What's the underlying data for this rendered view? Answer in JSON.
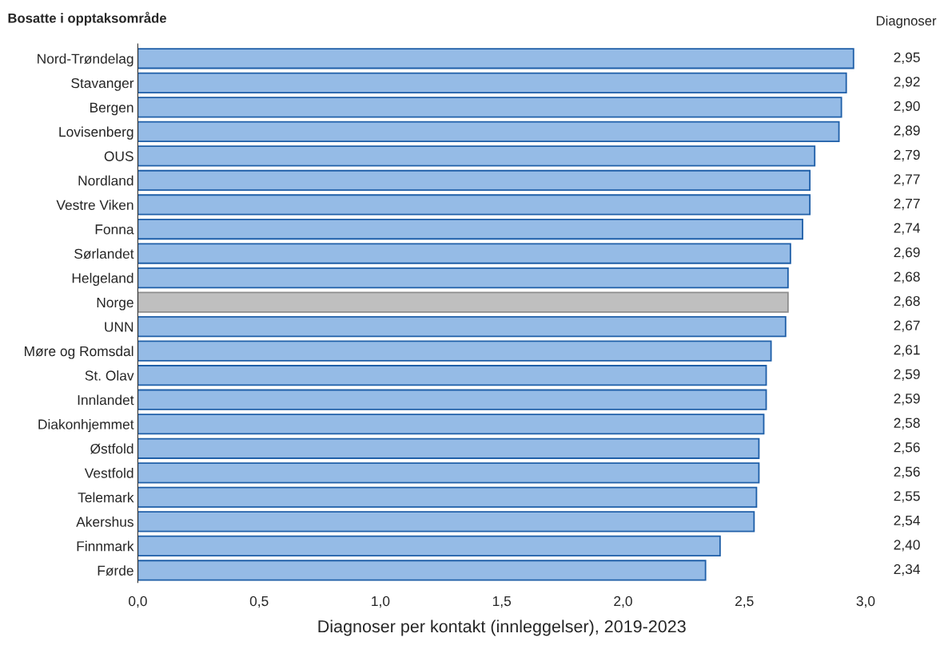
{
  "chart_data": {
    "type": "bar",
    "orientation": "horizontal",
    "ylabel": "Bosatte i opptaksområde",
    "xlabel": "Diagnoser per kontakt (innleggelser), 2019-2023",
    "annotations": [
      "Diagnoser"
    ],
    "categories": [
      "Nord-Trøndelag",
      "Stavanger",
      "Bergen",
      "Lovisenberg",
      "OUS",
      "Nordland",
      "Vestre Viken",
      "Fonna",
      "Sørlandet",
      "Helgeland",
      "Norge",
      "UNN",
      "Møre og Romsdal",
      "St. Olav",
      "Innlandet",
      "Diakonhjemmet",
      "Østfold",
      "Vestfold",
      "Telemark",
      "Akershus",
      "Finnmark",
      "Førde"
    ],
    "values": [
      2.95,
      2.92,
      2.9,
      2.89,
      2.79,
      2.77,
      2.77,
      2.74,
      2.69,
      2.68,
      2.68,
      2.67,
      2.61,
      2.59,
      2.59,
      2.58,
      2.56,
      2.56,
      2.55,
      2.54,
      2.4,
      2.34
    ],
    "value_labels": [
      "2,95",
      "2,92",
      "2,90",
      "2,89",
      "2,79",
      "2,77",
      "2,77",
      "2,74",
      "2,69",
      "2,68",
      "2,68",
      "2,67",
      "2,61",
      "2,59",
      "2,59",
      "2,58",
      "2,56",
      "2,56",
      "2,55",
      "2,54",
      "2,40",
      "2,34"
    ],
    "colors": [
      "#95bbe6",
      "#95bbe6",
      "#95bbe6",
      "#95bbe6",
      "#95bbe6",
      "#95bbe6",
      "#95bbe6",
      "#95bbe6",
      "#95bbe6",
      "#95bbe6",
      "#bfbfbf",
      "#95bbe6",
      "#95bbe6",
      "#95bbe6",
      "#95bbe6",
      "#95bbe6",
      "#95bbe6",
      "#95bbe6",
      "#95bbe6",
      "#95bbe6",
      "#95bbe6",
      "#95bbe6"
    ],
    "xlim": [
      0,
      3.0
    ],
    "xticks": [
      {
        "value": 0,
        "label": "0,0"
      },
      {
        "value": 0.5,
        "label": "0,5"
      },
      {
        "value": 1.0,
        "label": "1,0"
      },
      {
        "value": 1.5,
        "label": "1,5"
      },
      {
        "value": 2.0,
        "label": "2,0"
      },
      {
        "value": 2.5,
        "label": "2,5"
      },
      {
        "value": 3.0,
        "label": "3,0"
      }
    ],
    "grid": false,
    "legend": false
  }
}
